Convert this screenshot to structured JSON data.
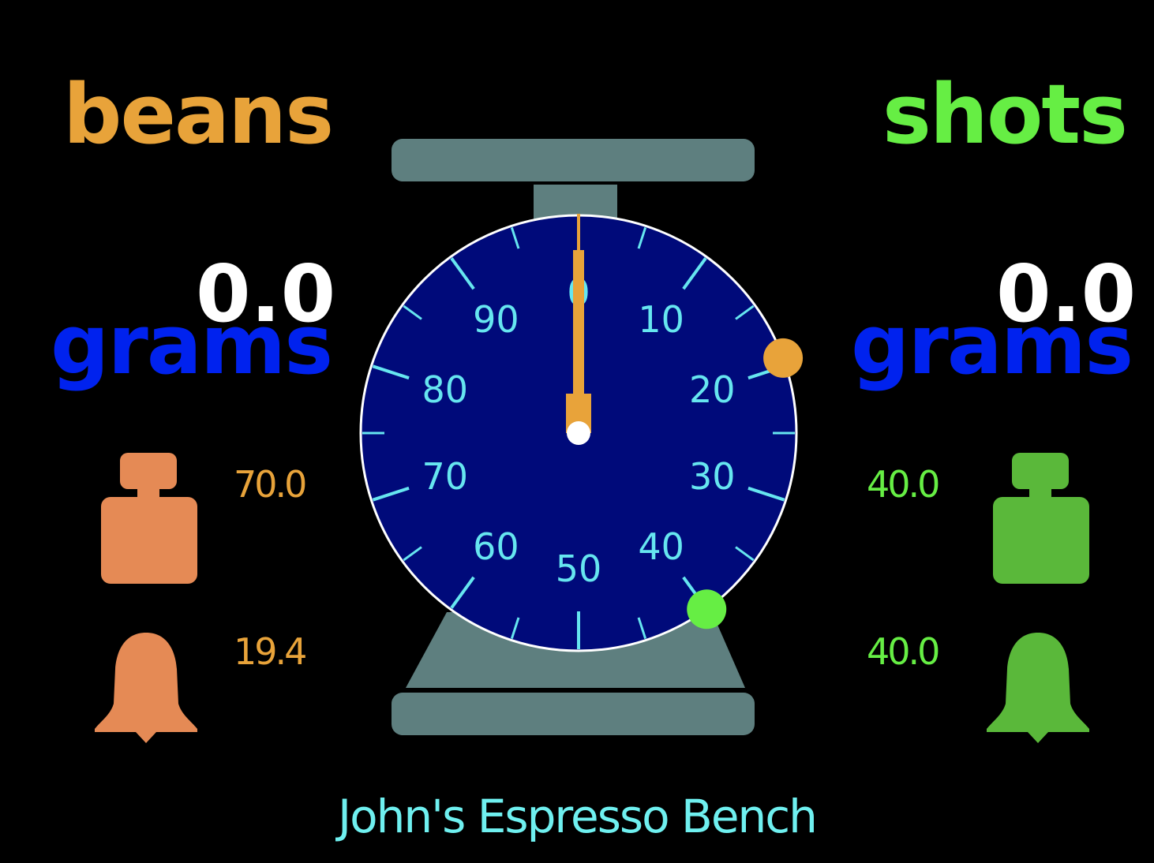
{
  "colors": {
    "background": "#000000",
    "beans_accent": "#e8a33a",
    "beans_icon": "#e58a55",
    "shots_accent": "#66ee44",
    "shots_icon": "#5ab83a",
    "unit_blue": "#0022ee",
    "dial_face": "#000a7a",
    "dial_tick": "#66e6f0",
    "scale_body": "#5e7f7f",
    "needle": "#e8a33a"
  },
  "beans": {
    "title": "beans",
    "weight": "0.0",
    "unit": "grams",
    "target_icon": "weight-icon",
    "target_value": "70.0",
    "alarm_icon": "bell-icon",
    "alarm_value": "19.4"
  },
  "shots": {
    "title": "shots",
    "weight": "0.0",
    "unit": "grams",
    "target_icon": "weight-icon",
    "target_value": "40.0",
    "alarm_icon": "bell-icon",
    "alarm_value": "40.0"
  },
  "dial": {
    "labels": [
      "0",
      "10",
      "20",
      "30",
      "40",
      "50",
      "60",
      "70",
      "80",
      "90"
    ],
    "needle_value": 0,
    "beans_marker_value": 19.4,
    "shots_marker_value": 40.0,
    "max": 100
  },
  "footer": {
    "text": "John's Espresso Bench"
  }
}
